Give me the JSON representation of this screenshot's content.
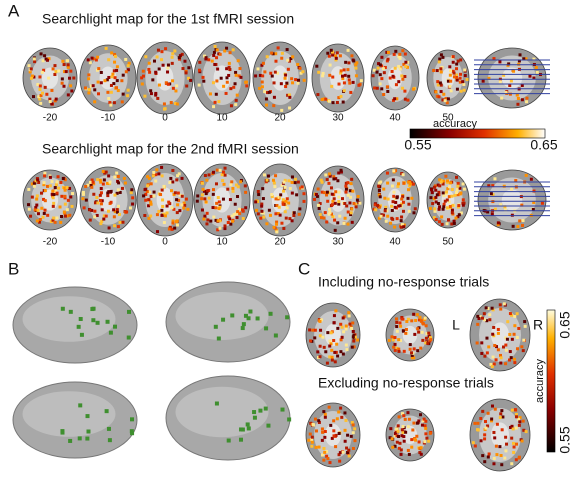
{
  "panel_a": {
    "label": "A",
    "rows": [
      {
        "title": "Searchlight map for the 1st fMRI session",
        "slice_labels": [
          "-20",
          "-10",
          "0",
          "10",
          "20",
          "30",
          "40",
          "50"
        ]
      },
      {
        "title": "Searchlight map for the 2nd fMRI session",
        "slice_labels": [
          "-20",
          "-10",
          "0",
          "10",
          "20",
          "30",
          "40",
          "50"
        ]
      }
    ],
    "colorbar": {
      "label": "accuracy",
      "min": "0.55",
      "max": "0.65"
    }
  },
  "panel_b": {
    "label": "B"
  },
  "panel_c": {
    "label": "C",
    "rows": [
      {
        "title": "Including no-response trials"
      },
      {
        "title": "Excluding no-response trials"
      }
    ],
    "left_marker": "L",
    "right_marker": "R",
    "colorbar": {
      "label": "accuracy",
      "max": "0.65",
      "min": "0.55"
    }
  }
}
